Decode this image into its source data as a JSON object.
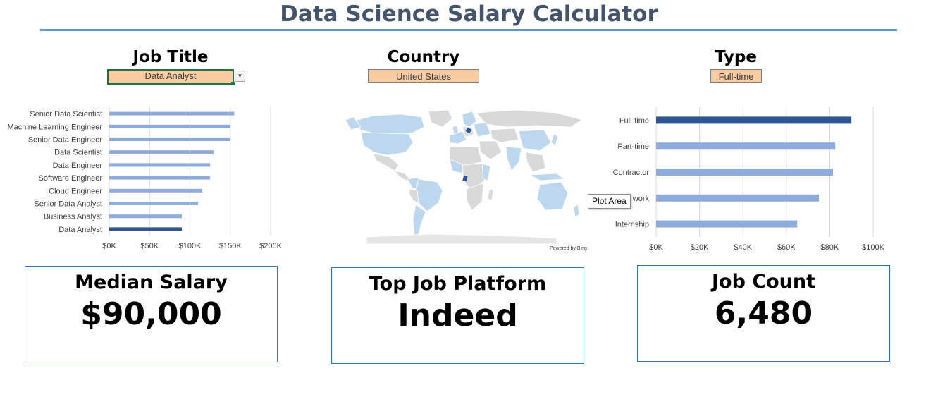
{
  "header": {
    "title": "Data Science Salary Calculator"
  },
  "filters": {
    "job_title": {
      "label": "Job Title",
      "value": "Data Analyst"
    },
    "country": {
      "label": "Country",
      "value": "United States"
    },
    "type": {
      "label": "Type",
      "value": "Full-time"
    }
  },
  "map": {
    "credit": "Powered by Bing",
    "highlight_color": "#2f5597",
    "base_color": "#bdd7ee",
    "empty_color": "#d9d9d9"
  },
  "tooltip": {
    "text": "Plot Area"
  },
  "kpis": {
    "median_salary": {
      "label": "Median Salary",
      "value": "$90,000"
    },
    "top_platform": {
      "label": "Top Job Platform",
      "value": "Indeed"
    },
    "job_count": {
      "label": "Job Count",
      "value": "6,480"
    }
  },
  "colors": {
    "bar": "#8faadc",
    "bar_highlight": "#2f5597",
    "grid": "#d9d9d9",
    "axis_text": "#404040"
  },
  "chart_data": [
    {
      "type": "bar",
      "orientation": "horizontal",
      "categories": [
        "Senior Data Scientist",
        "Machine Learning Engineer",
        "Senior Data Engineer",
        "Data Scientist",
        "Data Engineer",
        "Software Engineer",
        "Cloud Engineer",
        "Senior Data Analyst",
        "Business Analyst",
        "Data Analyst"
      ],
      "values": [
        155000,
        150000,
        150000,
        130000,
        125000,
        125000,
        115000,
        110000,
        90000,
        90000
      ],
      "highlight": "Data Analyst",
      "xlim": [
        0,
        200000
      ],
      "xticks": [
        0,
        50000,
        100000,
        150000,
        200000
      ],
      "xtick_labels": [
        "$0K",
        "$50K",
        "$100K",
        "$150K",
        "$200K"
      ],
      "grid": true
    },
    {
      "type": "bar",
      "orientation": "horizontal",
      "categories": [
        "Full-time",
        "Part-time",
        "Contractor",
        "Temp work",
        "Internship"
      ],
      "category_labels": [
        "Full-time",
        "Part-time",
        "Contractor",
        "work",
        "Internship"
      ],
      "values": [
        90000,
        82500,
        81500,
        75000,
        65000
      ],
      "highlight": "Full-time",
      "xlim": [
        0,
        100000
      ],
      "xticks": [
        0,
        20000,
        40000,
        60000,
        80000,
        100000
      ],
      "xtick_labels": [
        "$0K",
        "$20K",
        "$40K",
        "$60K",
        "$80K",
        "$100K"
      ],
      "grid": true
    }
  ]
}
